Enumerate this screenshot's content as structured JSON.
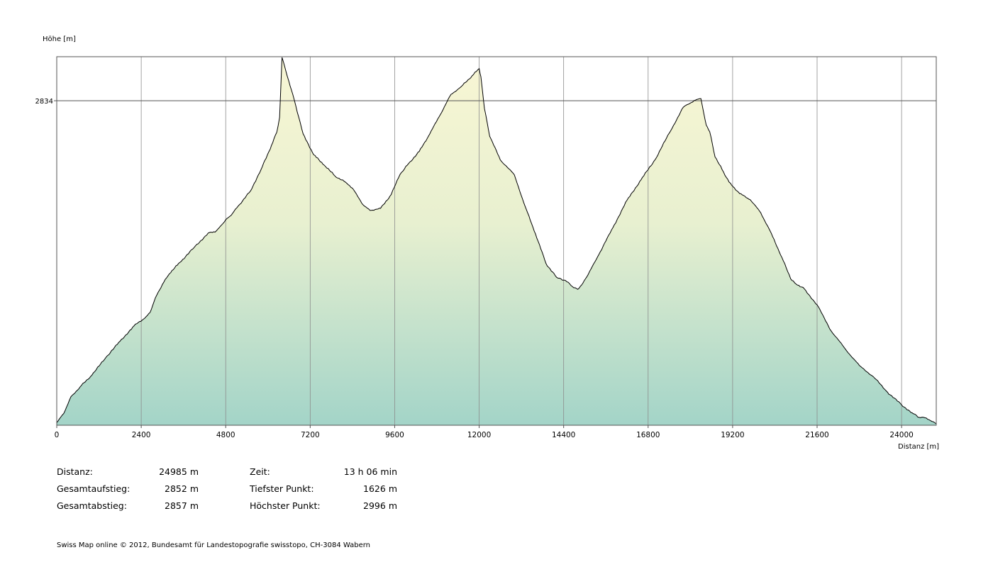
{
  "chart_data": {
    "type": "area",
    "ylabel": "Höhe [m]",
    "xlabel": "Distanz [m]",
    "x_ticks": [
      0,
      2400,
      4800,
      7200,
      9600,
      12000,
      14400,
      16800,
      19200,
      21600,
      24000
    ],
    "y_ticks": [
      2834
    ],
    "xlim": [
      0,
      24985
    ],
    "ylim": [
      1626,
      2996
    ],
    "grid": true,
    "series": [
      {
        "x": [
          0,
          200,
          400,
          700,
          1000,
          1400,
          1800,
          2200,
          2500,
          2650,
          2800,
          3000,
          3200,
          3500,
          3900,
          4300,
          4500,
          4650,
          4800,
          4950,
          5200,
          5500,
          5800,
          6100,
          6250,
          6330,
          6400,
          6550,
          6750,
          7000,
          7300,
          7600,
          7900,
          8200,
          8400,
          8700,
          8900,
          9200,
          9500,
          9750,
          10000,
          10300,
          10600,
          10900,
          11200,
          11500,
          11800,
          12000,
          12050,
          12150,
          12300,
          12600,
          13000,
          13300,
          13600,
          13900,
          14200,
          14450,
          14650,
          14800,
          14950,
          15100,
          15400,
          15800,
          16200,
          16600,
          17000,
          17400,
          17800,
          18100,
          18300,
          18450,
          18550,
          18700,
          18900,
          19100,
          19400,
          19700,
          20000,
          20300,
          20600,
          20850,
          21000,
          21200,
          21600,
          22000,
          22400,
          22800,
          23200,
          23600,
          24000,
          24300,
          24500,
          24700,
          24985
        ],
        "y": [
          1630,
          1665,
          1727,
          1769,
          1808,
          1875,
          1935,
          1993,
          2021,
          2042,
          2097,
          2147,
          2187,
          2230,
          2285,
          2339,
          2343,
          2365,
          2389,
          2405,
          2447,
          2496,
          2576,
          2667,
          2716,
          2772,
          2996,
          2925,
          2836,
          2710,
          2632,
          2593,
          2553,
          2530,
          2507,
          2445,
          2424,
          2432,
          2483,
          2558,
          2600,
          2645,
          2711,
          2783,
          2858,
          2888,
          2927,
          2954,
          2924,
          2805,
          2701,
          2613,
          2557,
          2441,
          2336,
          2225,
          2174,
          2162,
          2139,
          2129,
          2153,
          2185,
          2259,
          2360,
          2462,
          2539,
          2614,
          2713,
          2810,
          2834,
          2842,
          2743,
          2718,
          2624,
          2577,
          2530,
          2487,
          2464,
          2415,
          2338,
          2248,
          2168,
          2149,
          2136,
          2071,
          1973,
          1906,
          1844,
          1802,
          1744,
          1697,
          1667,
          1650,
          1648,
          1626
        ]
      }
    ],
    "colors": {
      "fill_top": "#f8f6d4",
      "fill_bottom": "#a3d4c8",
      "line": "#000000",
      "grid": "#8c8c8c",
      "frame": "#555555"
    }
  },
  "stats": {
    "left": [
      {
        "label": "Distanz:",
        "value": "24985 m"
      },
      {
        "label": "Gesamtaufstieg:",
        "value": "2852 m"
      },
      {
        "label": "Gesamtabstieg:",
        "value": "2857 m"
      }
    ],
    "right": [
      {
        "label": "Zeit:",
        "value": "13 h 06 min"
      },
      {
        "label": "Tiefster Punkt:",
        "value": "1626 m"
      },
      {
        "label": "Höchster Punkt:",
        "value": "2996 m"
      }
    ]
  },
  "footer": "Swiss Map online  © 2012, Bundesamt für Landestopografie swisstopo, CH-3084 Wabern"
}
